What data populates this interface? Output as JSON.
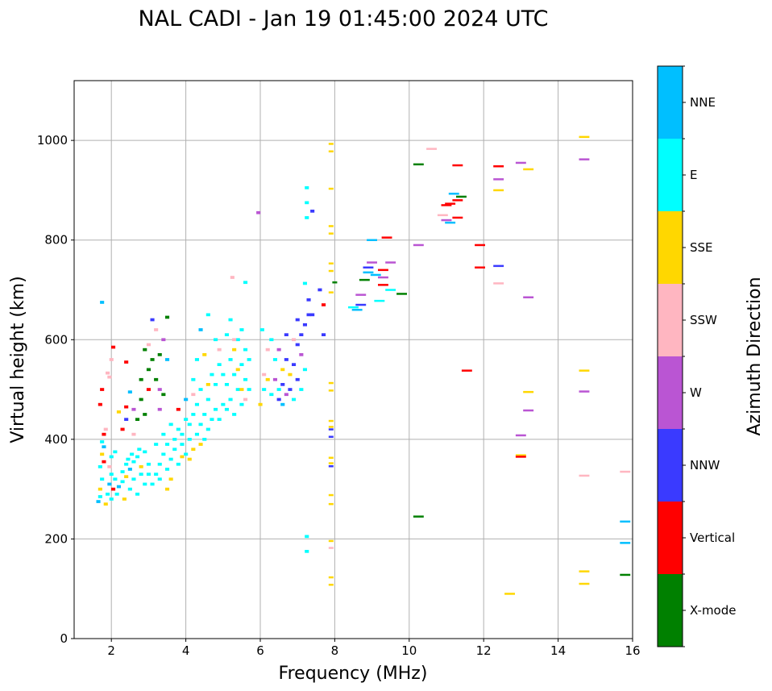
{
  "chart_data": {
    "type": "scatter",
    "title": "NAL CADI - Jan 19 01:45:00 2024 UTC",
    "xlabel": "Frequency (MHz)",
    "ylabel": "Virtual height (km)",
    "xlim": [
      1,
      16
    ],
    "ylim": [
      0,
      1120
    ],
    "xticks": [
      2,
      4,
      6,
      8,
      10,
      12,
      14,
      16
    ],
    "yticks": [
      0,
      200,
      400,
      600,
      800,
      1000
    ],
    "grid": true,
    "colorbar": {
      "label": "Azimuth Direction",
      "categories": [
        "X-mode",
        "Vertical",
        "NNW",
        "W",
        "SSW",
        "SSE",
        "E",
        "NNE"
      ],
      "colors": [
        "#008000",
        "#ff0000",
        "#3a3aff",
        "#ba55d3",
        "#ffb6c1",
        "#ffd700",
        "#00ffff",
        "#00bfff"
      ]
    },
    "point_format": "[frequency_MHz, virtual_height_km, direction_index]",
    "points": [
      [
        1.65,
        275,
        7
      ],
      [
        1.7,
        285,
        6
      ],
      [
        1.7,
        300,
        5
      ],
      [
        1.75,
        320,
        6
      ],
      [
        1.7,
        345,
        6
      ],
      [
        1.8,
        355,
        1
      ],
      [
        1.75,
        370,
        5
      ],
      [
        1.8,
        385,
        7
      ],
      [
        1.75,
        395,
        6
      ],
      [
        1.8,
        410,
        1
      ],
      [
        1.85,
        420,
        4
      ],
      [
        1.7,
        470,
        1
      ],
      [
        1.75,
        500,
        1
      ],
      [
        1.9,
        533,
        4
      ],
      [
        1.95,
        525,
        4
      ],
      [
        2.0,
        560,
        4
      ],
      [
        2.05,
        585,
        1
      ],
      [
        1.9,
        290,
        6
      ],
      [
        1.95,
        310,
        7
      ],
      [
        2.0,
        330,
        6
      ],
      [
        1.95,
        345,
        4
      ],
      [
        2.0,
        365,
        6
      ],
      [
        2.1,
        375,
        6
      ],
      [
        2.05,
        300,
        1
      ],
      [
        2.1,
        320,
        6
      ],
      [
        1.85,
        270,
        5
      ],
      [
        2.0,
        280,
        6
      ],
      [
        2.15,
        290,
        6
      ],
      [
        1.75,
        675,
        7
      ],
      [
        2.2,
        305,
        7
      ],
      [
        2.3,
        315,
        6
      ],
      [
        2.3,
        335,
        6
      ],
      [
        2.4,
        350,
        6
      ],
      [
        2.4,
        325,
        5
      ],
      [
        2.5,
        300,
        6
      ],
      [
        2.5,
        340,
        7
      ],
      [
        2.6,
        320,
        6
      ],
      [
        2.6,
        355,
        6
      ],
      [
        2.7,
        290,
        6
      ],
      [
        2.7,
        365,
        6
      ],
      [
        2.8,
        330,
        6
      ],
      [
        2.8,
        345,
        5
      ],
      [
        2.9,
        310,
        6
      ],
      [
        2.9,
        375,
        6
      ],
      [
        3.0,
        350,
        6
      ],
      [
        3.0,
        330,
        6
      ],
      [
        2.35,
        280,
        5
      ],
      [
        2.45,
        360,
        6
      ],
      [
        2.55,
        370,
        6
      ],
      [
        2.75,
        380,
        6
      ],
      [
        2.3,
        420,
        1
      ],
      [
        2.4,
        440,
        2
      ],
      [
        2.4,
        465,
        1
      ],
      [
        2.5,
        495,
        7
      ],
      [
        2.6,
        460,
        3
      ],
      [
        2.8,
        480,
        0
      ],
      [
        2.8,
        520,
        0
      ],
      [
        2.7,
        440,
        0
      ],
      [
        2.9,
        450,
        0
      ],
      [
        3.0,
        500,
        1
      ],
      [
        3.0,
        540,
        0
      ],
      [
        3.1,
        560,
        0
      ],
      [
        3.0,
        590,
        4
      ],
      [
        3.2,
        520,
        0
      ],
      [
        3.3,
        500,
        3
      ],
      [
        3.4,
        490,
        0
      ],
      [
        3.3,
        570,
        0
      ],
      [
        3.4,
        600,
        3
      ],
      [
        3.2,
        620,
        4
      ],
      [
        3.1,
        640,
        2
      ],
      [
        3.5,
        645,
        0
      ],
      [
        2.9,
        580,
        0
      ],
      [
        3.3,
        460,
        3
      ],
      [
        2.4,
        555,
        1
      ],
      [
        3.5,
        560,
        7
      ],
      [
        2.2,
        455,
        5
      ],
      [
        2.6,
        410,
        4
      ],
      [
        3.1,
        310,
        6
      ],
      [
        3.2,
        330,
        6
      ],
      [
        3.3,
        350,
        6
      ],
      [
        3.3,
        320,
        6
      ],
      [
        3.4,
        370,
        6
      ],
      [
        3.5,
        340,
        6
      ],
      [
        3.5,
        390,
        6
      ],
      [
        3.6,
        360,
        6
      ],
      [
        3.6,
        320,
        5
      ],
      [
        3.7,
        380,
        6
      ],
      [
        3.7,
        400,
        6
      ],
      [
        3.8,
        350,
        6
      ],
      [
        3.8,
        420,
        6
      ],
      [
        3.9,
        390,
        6
      ],
      [
        3.9,
        410,
        6
      ],
      [
        4.0,
        370,
        6
      ],
      [
        4.0,
        440,
        6
      ],
      [
        3.4,
        410,
        6
      ],
      [
        3.6,
        430,
        6
      ],
      [
        3.2,
        390,
        6
      ],
      [
        3.8,
        460,
        1
      ],
      [
        4.0,
        480,
        7
      ],
      [
        3.5,
        300,
        5
      ],
      [
        3.9,
        365,
        5
      ],
      [
        4.1,
        400,
        6
      ],
      [
        4.1,
        430,
        6
      ],
      [
        4.2,
        380,
        5
      ],
      [
        4.2,
        450,
        6
      ],
      [
        4.3,
        410,
        6
      ],
      [
        4.3,
        470,
        6
      ],
      [
        4.4,
        430,
        6
      ],
      [
        4.4,
        500,
        6
      ],
      [
        4.5,
        450,
        6
      ],
      [
        4.5,
        400,
        6
      ],
      [
        4.6,
        420,
        6
      ],
      [
        4.6,
        480,
        6
      ],
      [
        4.7,
        530,
        6
      ],
      [
        4.7,
        440,
        6
      ],
      [
        4.8,
        460,
        6
      ],
      [
        4.8,
        510,
        6
      ],
      [
        4.9,
        550,
        6
      ],
      [
        4.9,
        440,
        6
      ],
      [
        5.0,
        470,
        6
      ],
      [
        5.0,
        530,
        6
      ],
      [
        4.2,
        520,
        6
      ],
      [
        4.3,
        560,
        6
      ],
      [
        4.5,
        570,
        5
      ],
      [
        4.4,
        620,
        7
      ],
      [
        4.6,
        650,
        6
      ],
      [
        4.8,
        600,
        6
      ],
      [
        4.2,
        490,
        4
      ],
      [
        4.6,
        510,
        5
      ],
      [
        4.9,
        580,
        4
      ],
      [
        4.1,
        360,
        5
      ],
      [
        4.4,
        390,
        5
      ],
      [
        5.1,
        460,
        6
      ],
      [
        5.1,
        510,
        6
      ],
      [
        5.2,
        480,
        6
      ],
      [
        5.2,
        560,
        6
      ],
      [
        5.3,
        450,
        6
      ],
      [
        5.3,
        530,
        6
      ],
      [
        5.4,
        500,
        6
      ],
      [
        5.4,
        600,
        6
      ],
      [
        5.5,
        470,
        6
      ],
      [
        5.5,
        550,
        6
      ],
      [
        5.6,
        520,
        6
      ],
      [
        5.6,
        580,
        6
      ],
      [
        5.1,
        610,
        6
      ],
      [
        5.2,
        640,
        6
      ],
      [
        5.3,
        580,
        5
      ],
      [
        5.5,
        620,
        6
      ],
      [
        5.6,
        715,
        6
      ],
      [
        5.25,
        725,
        4
      ],
      [
        5.4,
        540,
        5
      ],
      [
        5.6,
        480,
        4
      ],
      [
        5.3,
        600,
        4
      ],
      [
        5.5,
        500,
        5
      ],
      [
        5.7,
        560,
        6
      ],
      [
        5.7,
        500,
        6
      ],
      [
        5.95,
        855,
        3
      ],
      [
        6.0,
        470,
        5
      ],
      [
        6.05,
        620,
        6
      ],
      [
        6.1,
        500,
        6
      ],
      [
        6.1,
        530,
        4
      ],
      [
        6.2,
        580,
        4
      ],
      [
        6.3,
        490,
        6
      ],
      [
        6.4,
        520,
        3
      ],
      [
        6.4,
        560,
        6
      ],
      [
        6.5,
        480,
        2
      ],
      [
        6.5,
        580,
        3
      ],
      [
        6.5,
        500,
        6
      ],
      [
        6.6,
        540,
        5
      ],
      [
        6.6,
        510,
        2
      ],
      [
        6.7,
        490,
        3
      ],
      [
        6.7,
        560,
        2
      ],
      [
        6.8,
        530,
        5
      ],
      [
        6.8,
        500,
        2
      ],
      [
        6.9,
        550,
        2
      ],
      [
        6.9,
        480,
        6
      ],
      [
        7.0,
        520,
        2
      ],
      [
        7.0,
        590,
        2
      ],
      [
        7.1,
        610,
        2
      ],
      [
        7.1,
        500,
        6
      ],
      [
        7.2,
        630,
        2
      ],
      [
        7.2,
        540,
        6
      ],
      [
        7.3,
        650,
        2
      ],
      [
        7.3,
        680,
        2
      ],
      [
        7.4,
        650,
        2
      ],
      [
        7.1,
        570,
        3
      ],
      [
        6.7,
        610,
        2
      ],
      [
        7.0,
        640,
        2
      ],
      [
        6.3,
        600,
        6
      ],
      [
        6.9,
        600,
        4
      ],
      [
        7.2,
        713,
        6
      ],
      [
        7.6,
        700,
        2
      ],
      [
        7.7,
        610,
        2
      ],
      [
        7.7,
        670,
        1
      ],
      [
        6.2,
        520,
        5
      ],
      [
        6.6,
        470,
        7
      ],
      [
        7.25,
        905,
        6
      ],
      [
        7.25,
        875,
        6
      ],
      [
        7.25,
        845,
        6
      ],
      [
        7.4,
        858,
        2
      ],
      [
        7.25,
        205,
        6
      ],
      [
        7.25,
        175,
        6
      ],
      [
        7.9,
        993,
        5
      ],
      [
        7.9,
        978,
        5
      ],
      [
        7.9,
        903,
        5
      ],
      [
        7.9,
        828,
        5
      ],
      [
        7.9,
        813,
        5
      ],
      [
        7.9,
        753,
        5
      ],
      [
        7.9,
        738,
        5
      ],
      [
        7.9,
        695,
        5
      ],
      [
        7.9,
        513,
        5
      ],
      [
        7.9,
        498,
        5
      ],
      [
        7.9,
        437,
        5
      ],
      [
        7.9,
        425,
        5
      ],
      [
        7.9,
        420,
        2
      ],
      [
        7.9,
        405,
        2
      ],
      [
        7.9,
        363,
        5
      ],
      [
        7.9,
        352,
        5
      ],
      [
        7.9,
        346,
        2
      ],
      [
        7.9,
        288,
        5
      ],
      [
        7.9,
        270,
        5
      ],
      [
        7.9,
        196,
        5
      ],
      [
        7.9,
        182,
        4
      ],
      [
        7.9,
        123,
        5
      ],
      [
        7.9,
        108,
        5
      ],
      [
        8.0,
        715,
        0
      ],
      [
        8.5,
        665,
        6
      ],
      [
        8.7,
        670,
        2
      ],
      [
        8.7,
        690,
        3
      ],
      [
        8.8,
        720,
        0
      ],
      [
        8.9,
        735,
        7
      ],
      [
        8.9,
        745,
        2
      ],
      [
        9.0,
        755,
        3
      ],
      [
        9.0,
        800,
        7
      ],
      [
        9.1,
        730,
        7
      ],
      [
        8.6,
        660,
        7
      ],
      [
        9.4,
        805,
        1
      ],
      [
        9.3,
        740,
        1
      ],
      [
        9.3,
        725,
        3
      ],
      [
        9.3,
        710,
        1
      ],
      [
        9.2,
        678,
        6
      ],
      [
        9.5,
        700,
        6
      ],
      [
        9.8,
        692,
        0
      ],
      [
        9.5,
        755,
        3
      ],
      [
        10.25,
        952,
        0
      ],
      [
        10.25,
        790,
        3
      ],
      [
        10.25,
        245,
        0
      ],
      [
        10.6,
        983,
        4
      ],
      [
        10.9,
        850,
        4
      ],
      [
        11.0,
        840,
        3
      ],
      [
        11.1,
        835,
        7
      ],
      [
        11.3,
        845,
        1
      ],
      [
        11.0,
        870,
        1
      ],
      [
        11.2,
        893,
        7
      ],
      [
        11.4,
        887,
        0
      ],
      [
        11.3,
        880,
        1
      ],
      [
        11.3,
        950,
        1
      ],
      [
        11.1,
        873,
        1
      ],
      [
        11.55,
        538,
        1
      ],
      [
        11.9,
        790,
        1
      ],
      [
        11.9,
        745,
        1
      ],
      [
        12.4,
        948,
        1
      ],
      [
        12.4,
        922,
        3
      ],
      [
        12.4,
        900,
        5
      ],
      [
        12.4,
        748,
        2
      ],
      [
        12.4,
        713,
        4
      ],
      [
        12.7,
        90,
        5
      ],
      [
        13.0,
        955,
        3
      ],
      [
        13.0,
        408,
        3
      ],
      [
        13.0,
        368,
        5
      ],
      [
        13.0,
        365,
        1
      ],
      [
        13.2,
        942,
        5
      ],
      [
        13.2,
        685,
        3
      ],
      [
        13.2,
        495,
        5
      ],
      [
        13.2,
        458,
        3
      ],
      [
        14.7,
        1007,
        5
      ],
      [
        14.7,
        962,
        3
      ],
      [
        14.7,
        538,
        5
      ],
      [
        14.7,
        496,
        3
      ],
      [
        14.7,
        327,
        4
      ],
      [
        14.7,
        135,
        5
      ],
      [
        14.7,
        110,
        5
      ],
      [
        15.8,
        335,
        4
      ],
      [
        15.8,
        235,
        7
      ],
      [
        15.8,
        192,
        7
      ],
      [
        15.8,
        128,
        0
      ]
    ]
  }
}
